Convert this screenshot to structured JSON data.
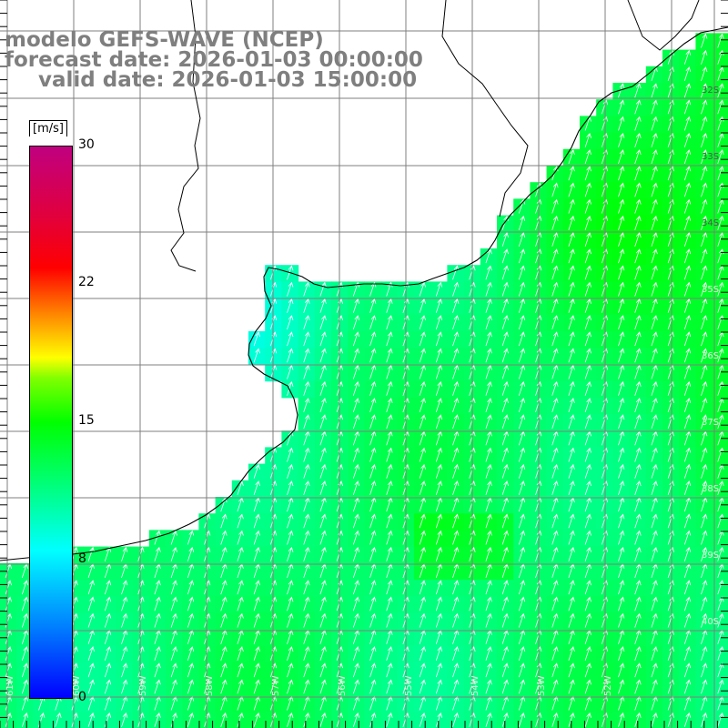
{
  "title": {
    "model": "modelo GEFS-WAVE (NCEP)",
    "forecast": "forecast date: 2026-01-03 00:00:00",
    "valid": "valid date: 2026-01-03 15:00:00"
  },
  "colorbar": {
    "unit": "[m/s]",
    "ticks": [
      "30",
      "22",
      "15",
      "8",
      "0"
    ],
    "tick_values": [
      30,
      22,
      15,
      8,
      0
    ],
    "range": [
      0,
      30
    ]
  },
  "map": {
    "lat_labels": [
      "32S",
      "33S",
      "34S",
      "35S",
      "36S",
      "37S",
      "38S",
      "39S",
      "40S"
    ],
    "lon_labels": [
      "61W",
      "60W",
      "59W",
      "58W",
      "57W",
      "56W",
      "55W",
      "54W",
      "53W",
      "52W"
    ],
    "colors": {
      "land": "#ffffff",
      "grid": "#7f7f7f",
      "coast": "#000000",
      "arrows": "#ffffff",
      "title": "#7f7f7f"
    },
    "field_description_values": {
      "coastal_min": 7,
      "open_ocean": 12,
      "east_max": 15
    }
  }
}
